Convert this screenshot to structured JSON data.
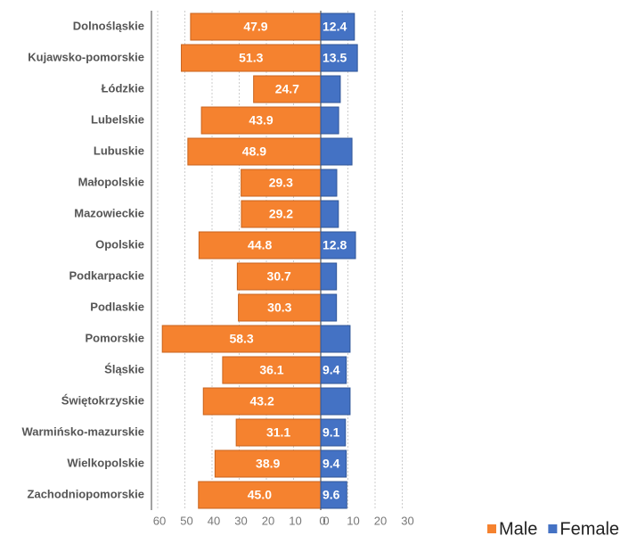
{
  "chart_data": {
    "type": "butterfly_bar",
    "categories": [
      "Dolnośląskie",
      "Kujawsko-pomorskie",
      "Łódzkie",
      "Lubelskie",
      "Lubuskie",
      "Małopolskie",
      "Mazowieckie",
      "Opolskie",
      "Podkarpackie",
      "Podlaskie",
      "Pomorskie",
      "Śląskie",
      "Świętokrzyskie",
      "Warmińsko-mazurskie",
      "Wielkopolskie",
      "Zachodniopomorskie"
    ],
    "series": [
      {
        "name": "Male",
        "color": "#f5822f",
        "axis": "x",
        "values": [
          47.9,
          51.3,
          24.7,
          43.9,
          48.9,
          29.3,
          29.2,
          44.8,
          30.7,
          30.3,
          58.3,
          36.1,
          43.2,
          31.1,
          38.9,
          45.0
        ],
        "value_labels": [
          "47.9",
          "51.3",
          "24.7",
          "43.9",
          "48.9",
          "29.3",
          "29.2",
          "44.8",
          "30.7",
          "30.3",
          "58.3",
          "36.1",
          "43.2",
          "31.1",
          "38.9",
          "45.0"
        ]
      },
      {
        "name": "Female",
        "color": "#4472c4",
        "axis": "x2",
        "values": [
          12.4,
          13.5,
          7.2,
          6.6,
          11.5,
          5.9,
          6.5,
          12.8,
          5.8,
          5.8,
          10.8,
          9.4,
          10.8,
          9.1,
          9.4,
          9.6
        ],
        "value_labels": [
          "12.4",
          "13.5",
          null,
          null,
          null,
          null,
          null,
          "12.8",
          null,
          null,
          null,
          "9.4",
          null,
          "9.1",
          "9.4",
          "9.6"
        ]
      }
    ],
    "xlim": [
      60,
      0
    ],
    "xticks": [
      60,
      50,
      40,
      30,
      20,
      10,
      0
    ],
    "x2lim": [
      0,
      30
    ],
    "x2ticks": [
      0,
      10,
      20,
      30
    ],
    "grid": true,
    "legend": "bottom-right"
  }
}
